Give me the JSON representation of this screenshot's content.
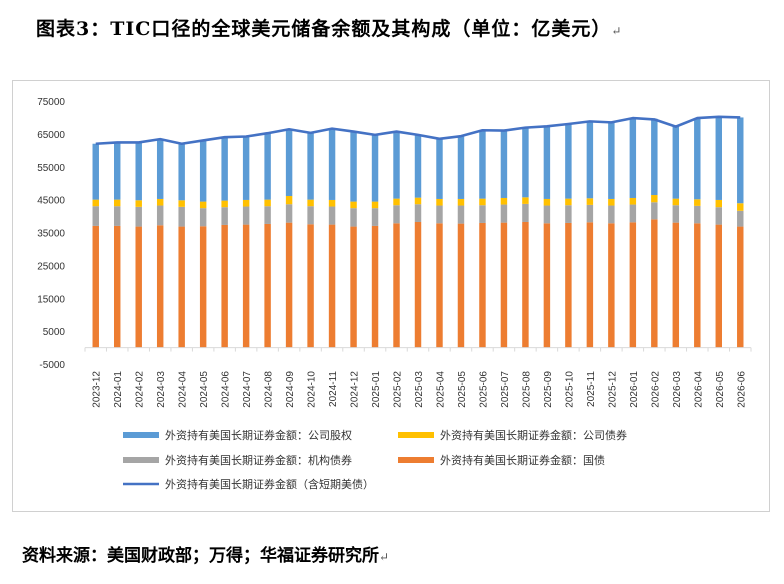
{
  "title": "图表3：TIC口径的全球美元储备余额及其构成（单位：亿美元）",
  "paragraph_mark": "↵",
  "source": "资料来源：美国财政部；万得；华福证券研究所",
  "chart_data": {
    "type": "bar",
    "stacked": true,
    "categories": [
      "2023-12",
      "2024-01",
      "2024-02",
      "2024-03",
      "2024-04",
      "2024-05",
      "2024-06",
      "2024-07",
      "2024-08",
      "2024-09",
      "2024-10",
      "2024-11",
      "2024-12",
      "2025-01",
      "2025-02",
      "2025-03",
      "2025-04",
      "2025-05",
      "2025-06",
      "2025-07",
      "2025-08",
      "2025-09",
      "2025-10",
      "2025-11",
      "2025-12",
      "2026-01",
      "2026-02",
      "2026-03",
      "2026-04",
      "2026-05",
      "2026-06"
    ],
    "ylim": [
      -5000,
      75000
    ],
    "yticks": [
      -5000,
      5000,
      15000,
      25000,
      35000,
      45000,
      55000,
      65000,
      75000
    ],
    "grid": false,
    "legend_position": "bottom",
    "series": [
      {
        "name": "外资持有美国长期证券金额：国债",
        "kind": "bar",
        "color": "#ED7D31",
        "values": [
          37000,
          37000,
          36800,
          37200,
          36800,
          36900,
          37300,
          37400,
          37600,
          38000,
          37500,
          37400,
          36800,
          37000,
          37800,
          38200,
          37800,
          37700,
          37900,
          38000,
          38200,
          37800,
          37900,
          38100,
          37800,
          38100,
          39000,
          38000,
          37800,
          37400,
          36800
        ]
      },
      {
        "name": "外资持有美国长期证券金额：机构债券",
        "kind": "bar",
        "color": "#A5A5A5",
        "values": [
          6000,
          6000,
          6000,
          6000,
          6000,
          5500,
          5400,
          5500,
          5400,
          5600,
          5500,
          5500,
          5600,
          5400,
          5500,
          5400,
          5400,
          5500,
          5400,
          5500,
          5500,
          5400,
          5400,
          5300,
          5400,
          5400,
          5200,
          5300,
          5300,
          5300,
          4800
        ]
      },
      {
        "name": "外资持有美国长期证券金额：公司债券",
        "kind": "bar",
        "color": "#FFC000",
        "values": [
          2000,
          2000,
          2000,
          2000,
          2000,
          2000,
          2000,
          2000,
          2000,
          2500,
          2000,
          2000,
          2000,
          2000,
          2000,
          2000,
          2000,
          2000,
          2000,
          2000,
          2000,
          2000,
          2000,
          2000,
          2000,
          2000,
          2200,
          2000,
          2000,
          2200,
          2300
        ]
      },
      {
        "name": "外资持有美国长期证券金额：公司股权",
        "kind": "bar",
        "color": "#5B9BD5",
        "values": [
          17000,
          17400,
          17600,
          18200,
          17200,
          18600,
          19300,
          19300,
          20200,
          20300,
          20300,
          21700,
          21300,
          20300,
          20400,
          19100,
          18300,
          19100,
          20800,
          20500,
          21200,
          22100,
          22700,
          23400,
          23300,
          24300,
          23200,
          21900,
          24700,
          25300,
          26100
        ]
      },
      {
        "name": "外资持有美国长期证券金额（含短期美债）",
        "kind": "line",
        "color": "#4472C4",
        "values": [
          62000,
          62400,
          62400,
          63400,
          62000,
          63000,
          64000,
          64200,
          65200,
          66400,
          65300,
          66600,
          65700,
          64700,
          65700,
          64700,
          63500,
          64300,
          66100,
          66000,
          66900,
          67300,
          68000,
          68800,
          68500,
          69800,
          69400,
          67200,
          69800,
          70200,
          70000
        ]
      }
    ]
  }
}
